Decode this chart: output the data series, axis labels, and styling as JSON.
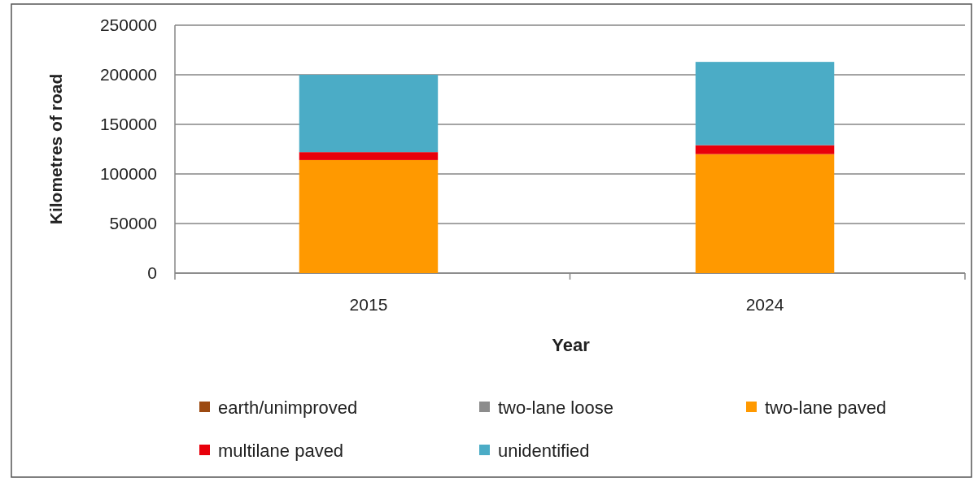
{
  "chart_data": {
    "type": "bar",
    "stacked": true,
    "xlabel": "Year",
    "ylabel": "Kilometres of road",
    "categories": [
      "2015",
      "2024"
    ],
    "series": [
      {
        "name": "earth/unimproved",
        "color": "#9c4a12",
        "values": [
          0,
          0
        ]
      },
      {
        "name": "two-lane loose",
        "color": "#8c8c8c",
        "values": [
          0,
          0
        ]
      },
      {
        "name": "two-lane paved",
        "color": "#ff9900",
        "values": [
          114000,
          120000
        ]
      },
      {
        "name": "multilane paved",
        "color": "#e8000b",
        "values": [
          8000,
          9000
        ]
      },
      {
        "name": "unidentified",
        "color": "#4bacc6",
        "values": [
          78000,
          84000
        ]
      }
    ],
    "ylim": [
      0,
      250000
    ],
    "yticks": [
      0,
      50000,
      100000,
      150000,
      200000,
      250000
    ],
    "grid": "y",
    "legend": "bottom"
  }
}
